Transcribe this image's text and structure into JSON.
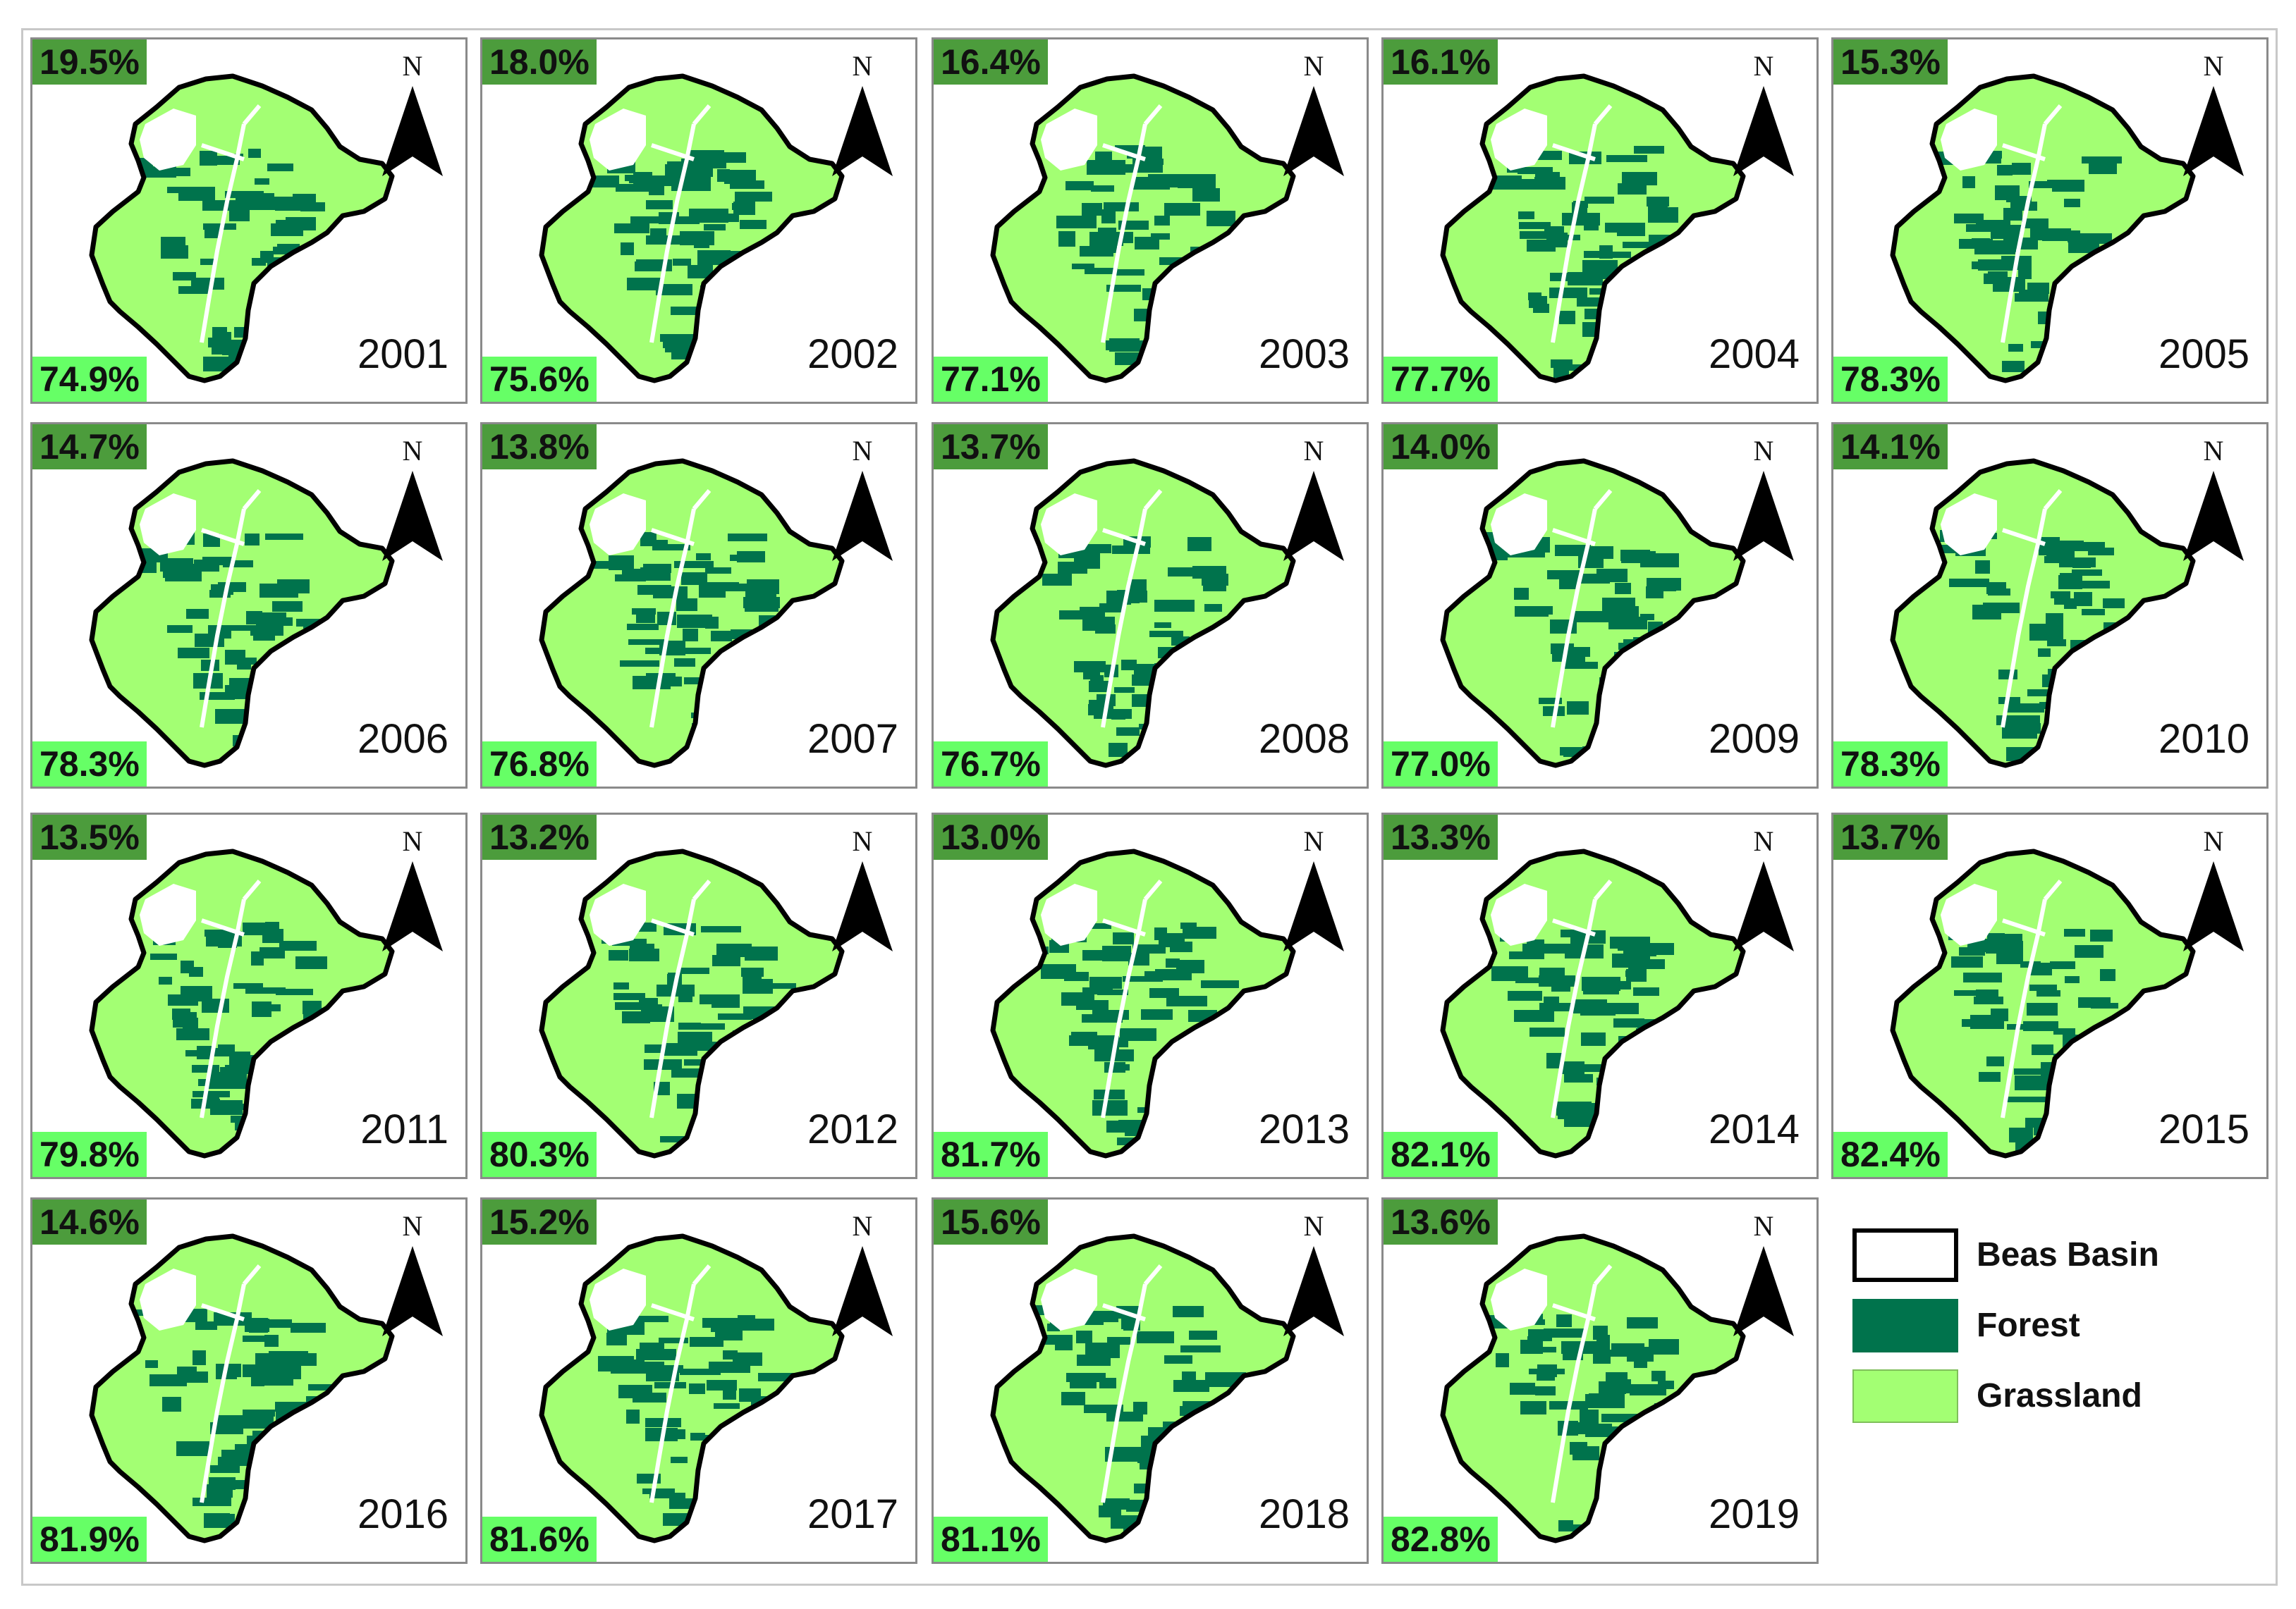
{
  "colors": {
    "forest": "#00734c",
    "grassland": "#a3ff73",
    "forest_badge": "#4c9c3c",
    "grass_badge": "#66ff66",
    "boundary": "#000000"
  },
  "panels": [
    {
      "year": "2001",
      "forest": "19.5%",
      "grassland": "74.9%"
    },
    {
      "year": "2002",
      "forest": "18.0%",
      "grassland": "75.6%"
    },
    {
      "year": "2003",
      "forest": "16.4%",
      "grassland": "77.1%"
    },
    {
      "year": "2004",
      "forest": "16.1%",
      "grassland": "77.7%"
    },
    {
      "year": "2005",
      "forest": "15.3%",
      "grassland": "78.3%"
    },
    {
      "year": "2006",
      "forest": "14.7%",
      "grassland": "78.3%"
    },
    {
      "year": "2007",
      "forest": "13.8%",
      "grassland": "76.8%"
    },
    {
      "year": "2008",
      "forest": "13.7%",
      "grassland": "76.7%"
    },
    {
      "year": "2009",
      "forest": "14.0%",
      "grassland": "77.0%"
    },
    {
      "year": "2010",
      "forest": "14.1%",
      "grassland": "78.3%"
    },
    {
      "year": "2011",
      "forest": "13.5%",
      "grassland": "79.8%"
    },
    {
      "year": "2012",
      "forest": "13.2%",
      "grassland": "80.3%"
    },
    {
      "year": "2013",
      "forest": "13.0%",
      "grassland": "81.7%"
    },
    {
      "year": "2014",
      "forest": "13.3%",
      "grassland": "82.1%"
    },
    {
      "year": "2015",
      "forest": "13.7%",
      "grassland": "82.4%"
    },
    {
      "year": "2016",
      "forest": "14.6%",
      "grassland": "81.9%"
    },
    {
      "year": "2017",
      "forest": "15.2%",
      "grassland": "81.6%"
    },
    {
      "year": "2018",
      "forest": "15.6%",
      "grassland": "81.1%"
    },
    {
      "year": "2019",
      "forest": "13.6%",
      "grassland": "82.8%"
    }
  ],
  "north_label": "N",
  "legend": [
    {
      "label": "Beas Basin",
      "swatch": "boundary"
    },
    {
      "label": "Forest",
      "swatch": "forest"
    },
    {
      "label": "Grassland",
      "swatch": "grassland"
    }
  ]
}
